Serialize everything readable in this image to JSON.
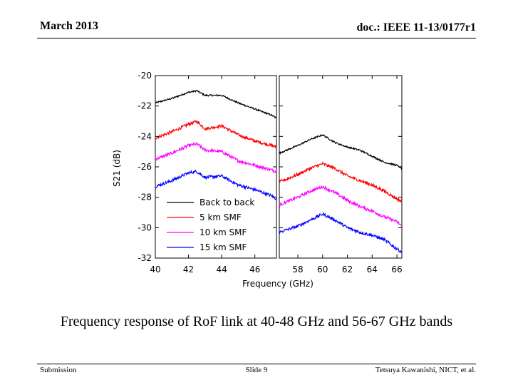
{
  "header": {
    "date": "March 2013",
    "doc_id": "doc.: IEEE 11-13/0177r1"
  },
  "caption": "Frequency response of RoF link at 40-48 GHz and 56-67 GHz bands",
  "footer": {
    "left": "Submission",
    "center": "Slide 9",
    "right": "Tetsuya Kawanishi, NICT, et al."
  },
  "chart_data": {
    "type": "line",
    "title": "",
    "xlabel": "Frequency (GHz)",
    "ylabel": "S21 (dB)",
    "ylim": [
      -32,
      -20
    ],
    "yticks": [
      -20,
      -22,
      -24,
      -26,
      -28,
      -30,
      -32
    ],
    "grid": false,
    "legend_position": "bottom-left of left panel",
    "panels": [
      {
        "name": "40-48 GHz",
        "xlim": [
          40,
          47.3
        ],
        "xticks": [
          40,
          42,
          44,
          46
        ],
        "x": [
          40,
          41,
          42,
          42.5,
          43,
          44,
          45,
          46,
          47,
          47.3
        ]
      },
      {
        "name": "56-67 GHz",
        "xlim": [
          56.5,
          66.4
        ],
        "xticks": [
          58,
          60,
          62,
          64,
          66
        ],
        "x": [
          56.5,
          58,
          59,
          60,
          61,
          62,
          63,
          64,
          65,
          66,
          66.4
        ]
      }
    ],
    "series": [
      {
        "name": "Back to back",
        "color": "#000000",
        "noise": 0.05,
        "values": [
          [
            -21.8,
            -21.5,
            -21.1,
            -21.0,
            -21.3,
            -21.3,
            -21.8,
            -22.2,
            -22.6,
            -22.8
          ],
          [
            -25.1,
            -24.6,
            -24.2,
            -23.9,
            -24.4,
            -24.7,
            -24.9,
            -25.3,
            -25.7,
            -25.9,
            -26.1
          ]
        ]
      },
      {
        "name": "5 km SMF",
        "color": "#ff0000",
        "noise": 0.1,
        "values": [
          [
            -24.1,
            -23.7,
            -23.2,
            -23.0,
            -23.5,
            -23.3,
            -23.9,
            -24.3,
            -24.6,
            -24.7
          ],
          [
            -27.0,
            -26.5,
            -26.1,
            -25.8,
            -26.1,
            -26.6,
            -26.9,
            -27.2,
            -27.6,
            -28.1,
            -28.3
          ]
        ]
      },
      {
        "name": "10 km SMF",
        "color": "#ff00ff",
        "noise": 0.1,
        "values": [
          [
            -25.5,
            -25.1,
            -24.6,
            -24.5,
            -24.9,
            -25.0,
            -25.6,
            -25.9,
            -26.2,
            -26.3
          ],
          [
            -28.5,
            -28.0,
            -27.6,
            -27.3,
            -27.7,
            -28.2,
            -28.6,
            -28.9,
            -29.3,
            -29.6,
            -29.9
          ]
        ]
      },
      {
        "name": "15 km SMF",
        "color": "#0000ff",
        "noise": 0.1,
        "values": [
          [
            -27.3,
            -26.9,
            -26.4,
            -26.3,
            -26.7,
            -26.6,
            -27.2,
            -27.5,
            -27.9,
            -28.1
          ],
          [
            -30.3,
            -29.9,
            -29.5,
            -29.1,
            -29.5,
            -30.0,
            -30.3,
            -30.5,
            -30.8,
            -31.4,
            -31.6
          ]
        ]
      }
    ]
  }
}
